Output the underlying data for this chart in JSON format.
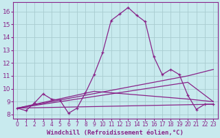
{
  "background_color": "#c8eaee",
  "grid_color": "#b0d8dc",
  "line_color": "#882288",
  "xlabel": "Windchill (Refroidissement éolien,°C)",
  "xlabel_fontsize": 6.5,
  "xtick_fontsize": 5.5,
  "ytick_fontsize": 6.5,
  "xlim": [
    -0.5,
    23.5
  ],
  "ylim": [
    7.7,
    16.7
  ],
  "yticks": [
    8,
    9,
    10,
    11,
    12,
    13,
    14,
    15,
    16
  ],
  "xticks": [
    0,
    1,
    2,
    3,
    4,
    5,
    6,
    7,
    8,
    9,
    10,
    11,
    12,
    13,
    14,
    15,
    16,
    17,
    18,
    19,
    20,
    21,
    22,
    23
  ],
  "curve1_x": [
    0,
    1,
    2,
    3,
    4,
    5,
    6,
    7,
    8,
    9,
    10,
    11,
    12,
    13,
    14,
    15,
    16,
    17,
    18,
    19,
    20,
    21,
    22,
    23
  ],
  "curve1_y": [
    8.5,
    8.3,
    8.9,
    9.6,
    9.2,
    9.1,
    8.1,
    8.5,
    9.7,
    11.1,
    12.8,
    15.3,
    15.8,
    16.3,
    15.7,
    15.2,
    12.5,
    11.1,
    11.5,
    11.1,
    9.5,
    8.4,
    8.8,
    8.8
  ],
  "curve2_x": [
    0,
    23
  ],
  "curve2_y": [
    8.5,
    8.8
  ],
  "curve3_x": [
    0,
    20,
    23
  ],
  "curve3_y": [
    8.5,
    11.0,
    11.5
  ],
  "curve4_x": [
    0,
    20,
    23
  ],
  "curve4_y": [
    8.5,
    10.5,
    9.0
  ],
  "curve5_x": [
    0,
    9,
    20,
    23
  ],
  "curve5_y": [
    8.5,
    9.8,
    9.2,
    9.0
  ]
}
